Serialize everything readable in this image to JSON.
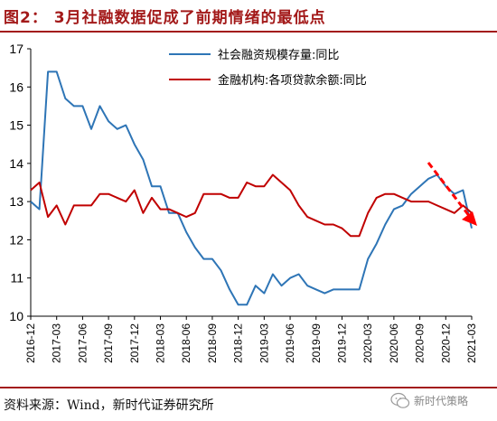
{
  "title": "图2： 3月社融数据促成了前期情绪的最低点",
  "source": "资料来源：Wind，新时代证券研究所",
  "watermark": "新时代策略",
  "colors": {
    "title": "#a31a1a",
    "series1": "#2e75b6",
    "series2": "#c00000",
    "arrow": "#ff0000"
  },
  "chart_data": {
    "type": "line",
    "ylim": [
      10,
      17
    ],
    "yticks": [
      10,
      11,
      12,
      13,
      14,
      15,
      16,
      17
    ],
    "xticks": [
      "2016-12",
      "2017-03",
      "2017-06",
      "2017-09",
      "2017-12",
      "2018-03",
      "2018-06",
      "2018-09",
      "2018-12",
      "2019-03",
      "2019-06",
      "2019-09",
      "2019-12",
      "2020-03",
      "2020-06",
      "2020-09",
      "2020-12",
      "2021-03"
    ],
    "legend_position": "top-center",
    "grid": false,
    "series": [
      {
        "name": "社会融资规模存量:同比",
        "color": "#2e75b6",
        "values": [
          13.0,
          12.8,
          16.4,
          16.4,
          15.7,
          15.5,
          15.5,
          14.9,
          15.5,
          15.1,
          14.9,
          15.0,
          14.5,
          14.1,
          13.4,
          13.4,
          12.7,
          12.7,
          12.2,
          11.8,
          11.5,
          11.5,
          11.2,
          10.7,
          10.3,
          10.3,
          10.8,
          10.6,
          11.1,
          10.8,
          11.0,
          11.1,
          10.8,
          10.7,
          10.6,
          10.7,
          10.7,
          10.7,
          10.7,
          11.5,
          11.9,
          12.4,
          12.8,
          12.9,
          13.2,
          13.4,
          13.6,
          13.7,
          13.4,
          13.2,
          13.3,
          12.3
        ]
      },
      {
        "name": "金融机构:各项贷款余额:同比",
        "color": "#c00000",
        "values": [
          13.3,
          13.5,
          12.6,
          12.9,
          12.4,
          12.9,
          12.9,
          12.9,
          13.2,
          13.2,
          13.1,
          13.0,
          13.3,
          12.7,
          13.1,
          12.8,
          12.8,
          12.7,
          12.6,
          12.7,
          13.2,
          13.2,
          13.2,
          13.1,
          13.1,
          13.5,
          13.4,
          13.4,
          13.7,
          13.5,
          13.3,
          12.9,
          12.6,
          12.5,
          12.4,
          12.4,
          12.3,
          12.1,
          12.1,
          12.7,
          13.1,
          13.2,
          13.2,
          13.1,
          13.0,
          13.0,
          13.0,
          12.9,
          12.8,
          12.7,
          12.9,
          12.7
        ]
      }
    ]
  }
}
